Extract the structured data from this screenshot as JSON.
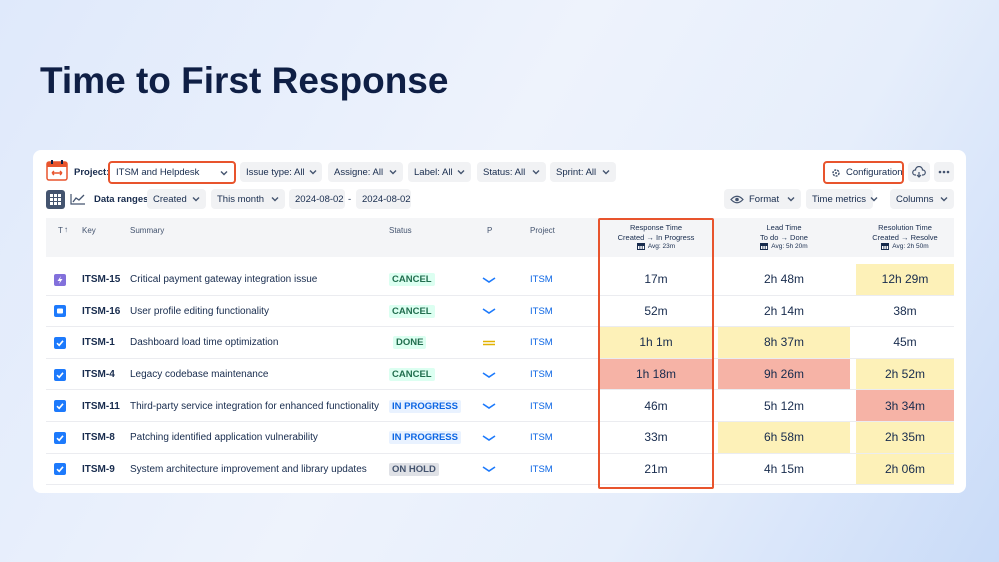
{
  "title": "Time to First Response",
  "toolbar": {
    "project_label": "Project:",
    "project": "ITSM and Helpdesk",
    "filters": [
      "Issue type: All",
      "Assigne: All",
      "Label: All",
      "Status: All",
      "Sprint: All"
    ],
    "configuration": "Configuration"
  },
  "ranges": {
    "label": "Data ranges:",
    "field": "Created",
    "period": "This month",
    "from": "2024-08-02",
    "separator": "-",
    "to": "2024-08-02",
    "format": "Format",
    "time_metrics": "Time metrics",
    "columns": "Columns"
  },
  "table": {
    "headers": {
      "type": "T",
      "key": "Key",
      "summary": "Summary",
      "status": "Status",
      "priority": "P",
      "project": "Project",
      "response": {
        "title": "Response Time",
        "range": "Created → In Progress",
        "avg": "Avg: 23m"
      },
      "lead": {
        "title": "Lead Time",
        "range": "To do → Done",
        "avg": "Avg: 5h 20m"
      },
      "resolution": {
        "title": "Resolution Time",
        "range": "Created → Resolve",
        "avg": "Avg: 2h 50m"
      }
    },
    "rows": [
      {
        "key": "ITSM-15",
        "summary": "Critical payment gateway integration issue",
        "status": "CANCEL",
        "project": "ITSM",
        "response": "17m",
        "lead": "2h 48m",
        "resolution": "12h 29m"
      },
      {
        "key": "ITSM-16",
        "summary": "User profile editing functionality",
        "status": "CANCEL",
        "project": "ITSM",
        "response": "52m",
        "lead": "2h 14m",
        "resolution": "38m"
      },
      {
        "key": "ITSM-1",
        "summary": "Dashboard load time optimization",
        "status": "DONE",
        "project": "ITSM",
        "response": "1h 1m",
        "lead": "8h 37m",
        "resolution": "45m"
      },
      {
        "key": "ITSM-4",
        "summary": "Legacy codebase maintenance",
        "status": "CANCEL",
        "project": "ITSM",
        "response": "1h 18m",
        "lead": "9h 26m",
        "resolution": "2h 52m"
      },
      {
        "key": "ITSM-11",
        "summary": "Third-party service integration for enhanced functionality",
        "status": "IN PROGRESS",
        "project": "ITSM",
        "response": "46m",
        "lead": "5h 12m",
        "resolution": "3h 34m"
      },
      {
        "key": "ITSM-8",
        "summary": "Patching identified application vulnerability",
        "status": "IN PROGRESS",
        "project": "ITSM",
        "response": "33m",
        "lead": "6h 58m",
        "resolution": "2h 35m"
      },
      {
        "key": "ITSM-9",
        "summary": "System architecture improvement and library updates",
        "status": "ON HOLD",
        "project": "ITSM",
        "response": "21m",
        "lead": "4h 15m",
        "resolution": "2h 06m"
      }
    ]
  }
}
